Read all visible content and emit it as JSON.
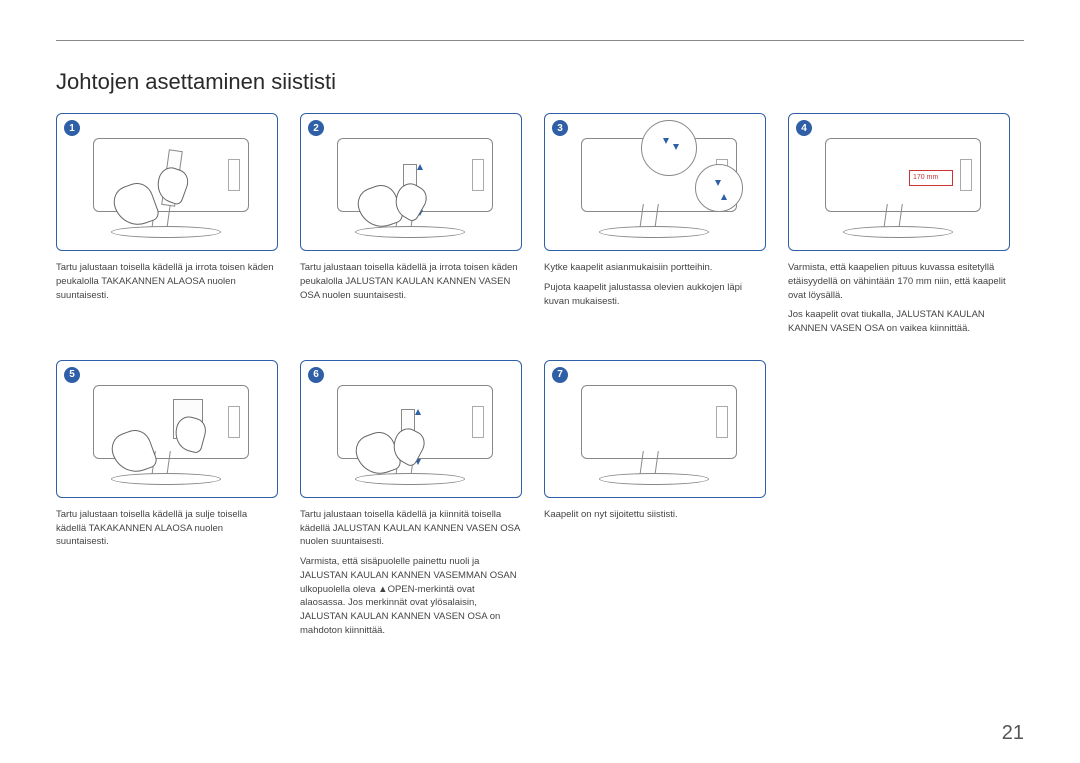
{
  "page": {
    "title": "Johtojen asettaminen siististi",
    "number": "21",
    "rule_color": "#888888",
    "accent_color": "#2f5fa6"
  },
  "steps": [
    {
      "num": "1",
      "caption": "Tartu jalustaan toisella kädellä ja irrota toisen käden peukalolla TAKAKANNEN ALAOSA nuolen suuntaisesti."
    },
    {
      "num": "2",
      "caption": "Tartu jalustaan toisella kädellä ja irrota toisen käden peukalolla JALUSTAN KAULAN KANNEN VASEN OSA nuolen suuntaisesti."
    },
    {
      "num": "3",
      "caption": "Kytke kaapelit asianmukaisiin portteihin.\nPujota kaapelit jalustassa olevien aukkojen läpi kuvan mukaisesti."
    },
    {
      "num": "4",
      "caption": "Varmista, että kaapelien pituus kuvassa esitetyllä etäisyydellä on vähintään 170 mm niin, että kaapelit ovat löysällä.\nJos kaapelit ovat tiukalla, JALUSTAN KAULAN KANNEN VASEN OSA on vaikea kiinnittää.",
      "measure": "170 mm"
    },
    {
      "num": "5",
      "caption": "Tartu jalustaan toisella kädellä ja sulje toisella kädellä TAKAKANNEN ALAOSA nuolen suuntaisesti."
    },
    {
      "num": "6",
      "caption": "Tartu jalustaan toisella kädellä ja kiinnitä toisella kädellä JALUSTAN KAULAN KANNEN VASEN OSA nuolen suuntaisesti.\nVarmista, että sisäpuolelle painettu nuoli ja JALUSTAN KAULAN KANNEN VASEMMAN OSAN ulkopuolella oleva ▲OPEN-merkintä ovat alaosassa. Jos merkinnät ovat ylösalaisin, JALUSTAN KAULAN KANNEN VASEN OSA on mahdoton kiinnittää."
    },
    {
      "num": "7",
      "caption": "Kaapelit on nyt sijoitettu siististi."
    }
  ]
}
